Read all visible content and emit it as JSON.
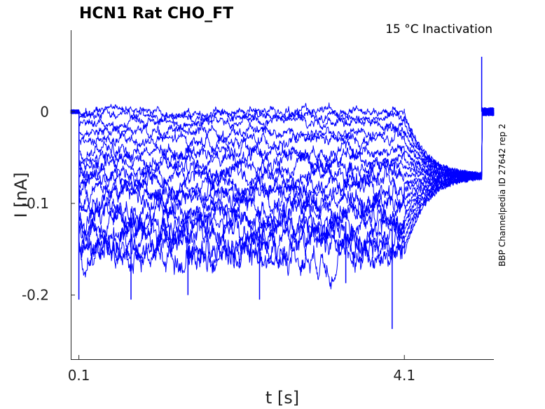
{
  "chart_data": {
    "type": "line",
    "title": "HCN1  Rat  CHO_FT",
    "annotation": "15 °C  Inactivation",
    "side_label": "BBP Channelpedia ID 27642 rep 2",
    "xlabel": "t [s]",
    "ylabel": "I [nA]",
    "xlim": [
      0.0,
      5.2
    ],
    "ylim": [
      -0.27,
      0.089
    ],
    "x_ticks": [
      {
        "value": 0.1,
        "label": "0.1"
      },
      {
        "value": 4.1,
        "label": "4.1"
      }
    ],
    "y_ticks": [
      {
        "value": 0,
        "label": "0"
      },
      {
        "value": -0.1,
        "label": "-0.1"
      },
      {
        "value": -0.2,
        "label": "-0.2"
      }
    ],
    "grid": false,
    "series_color": "#0000ff",
    "step_start_s": 0.1,
    "step_end_s": 4.1,
    "recovery_end_s": 5.05,
    "end_s": 5.2,
    "tail_level_nA": -0.07,
    "noise_nA": 0.0045,
    "sweep_levels_nA": [
      0.0,
      -0.005,
      -0.012,
      -0.022,
      -0.032,
      -0.042,
      -0.052,
      -0.06,
      -0.068,
      -0.078,
      -0.086,
      -0.095,
      -0.105,
      -0.113,
      -0.122,
      -0.131,
      -0.14,
      -0.148,
      -0.155
    ],
    "spikes": [
      {
        "x": 0.1,
        "y": -0.205
      },
      {
        "x": 0.74,
        "y": -0.205
      },
      {
        "x": 1.44,
        "y": -0.2
      },
      {
        "x": 2.32,
        "y": -0.205
      },
      {
        "x": 3.38,
        "y": -0.187
      },
      {
        "x": 3.95,
        "y": -0.237
      },
      {
        "x": 5.05,
        "y": 0.06
      }
    ]
  }
}
